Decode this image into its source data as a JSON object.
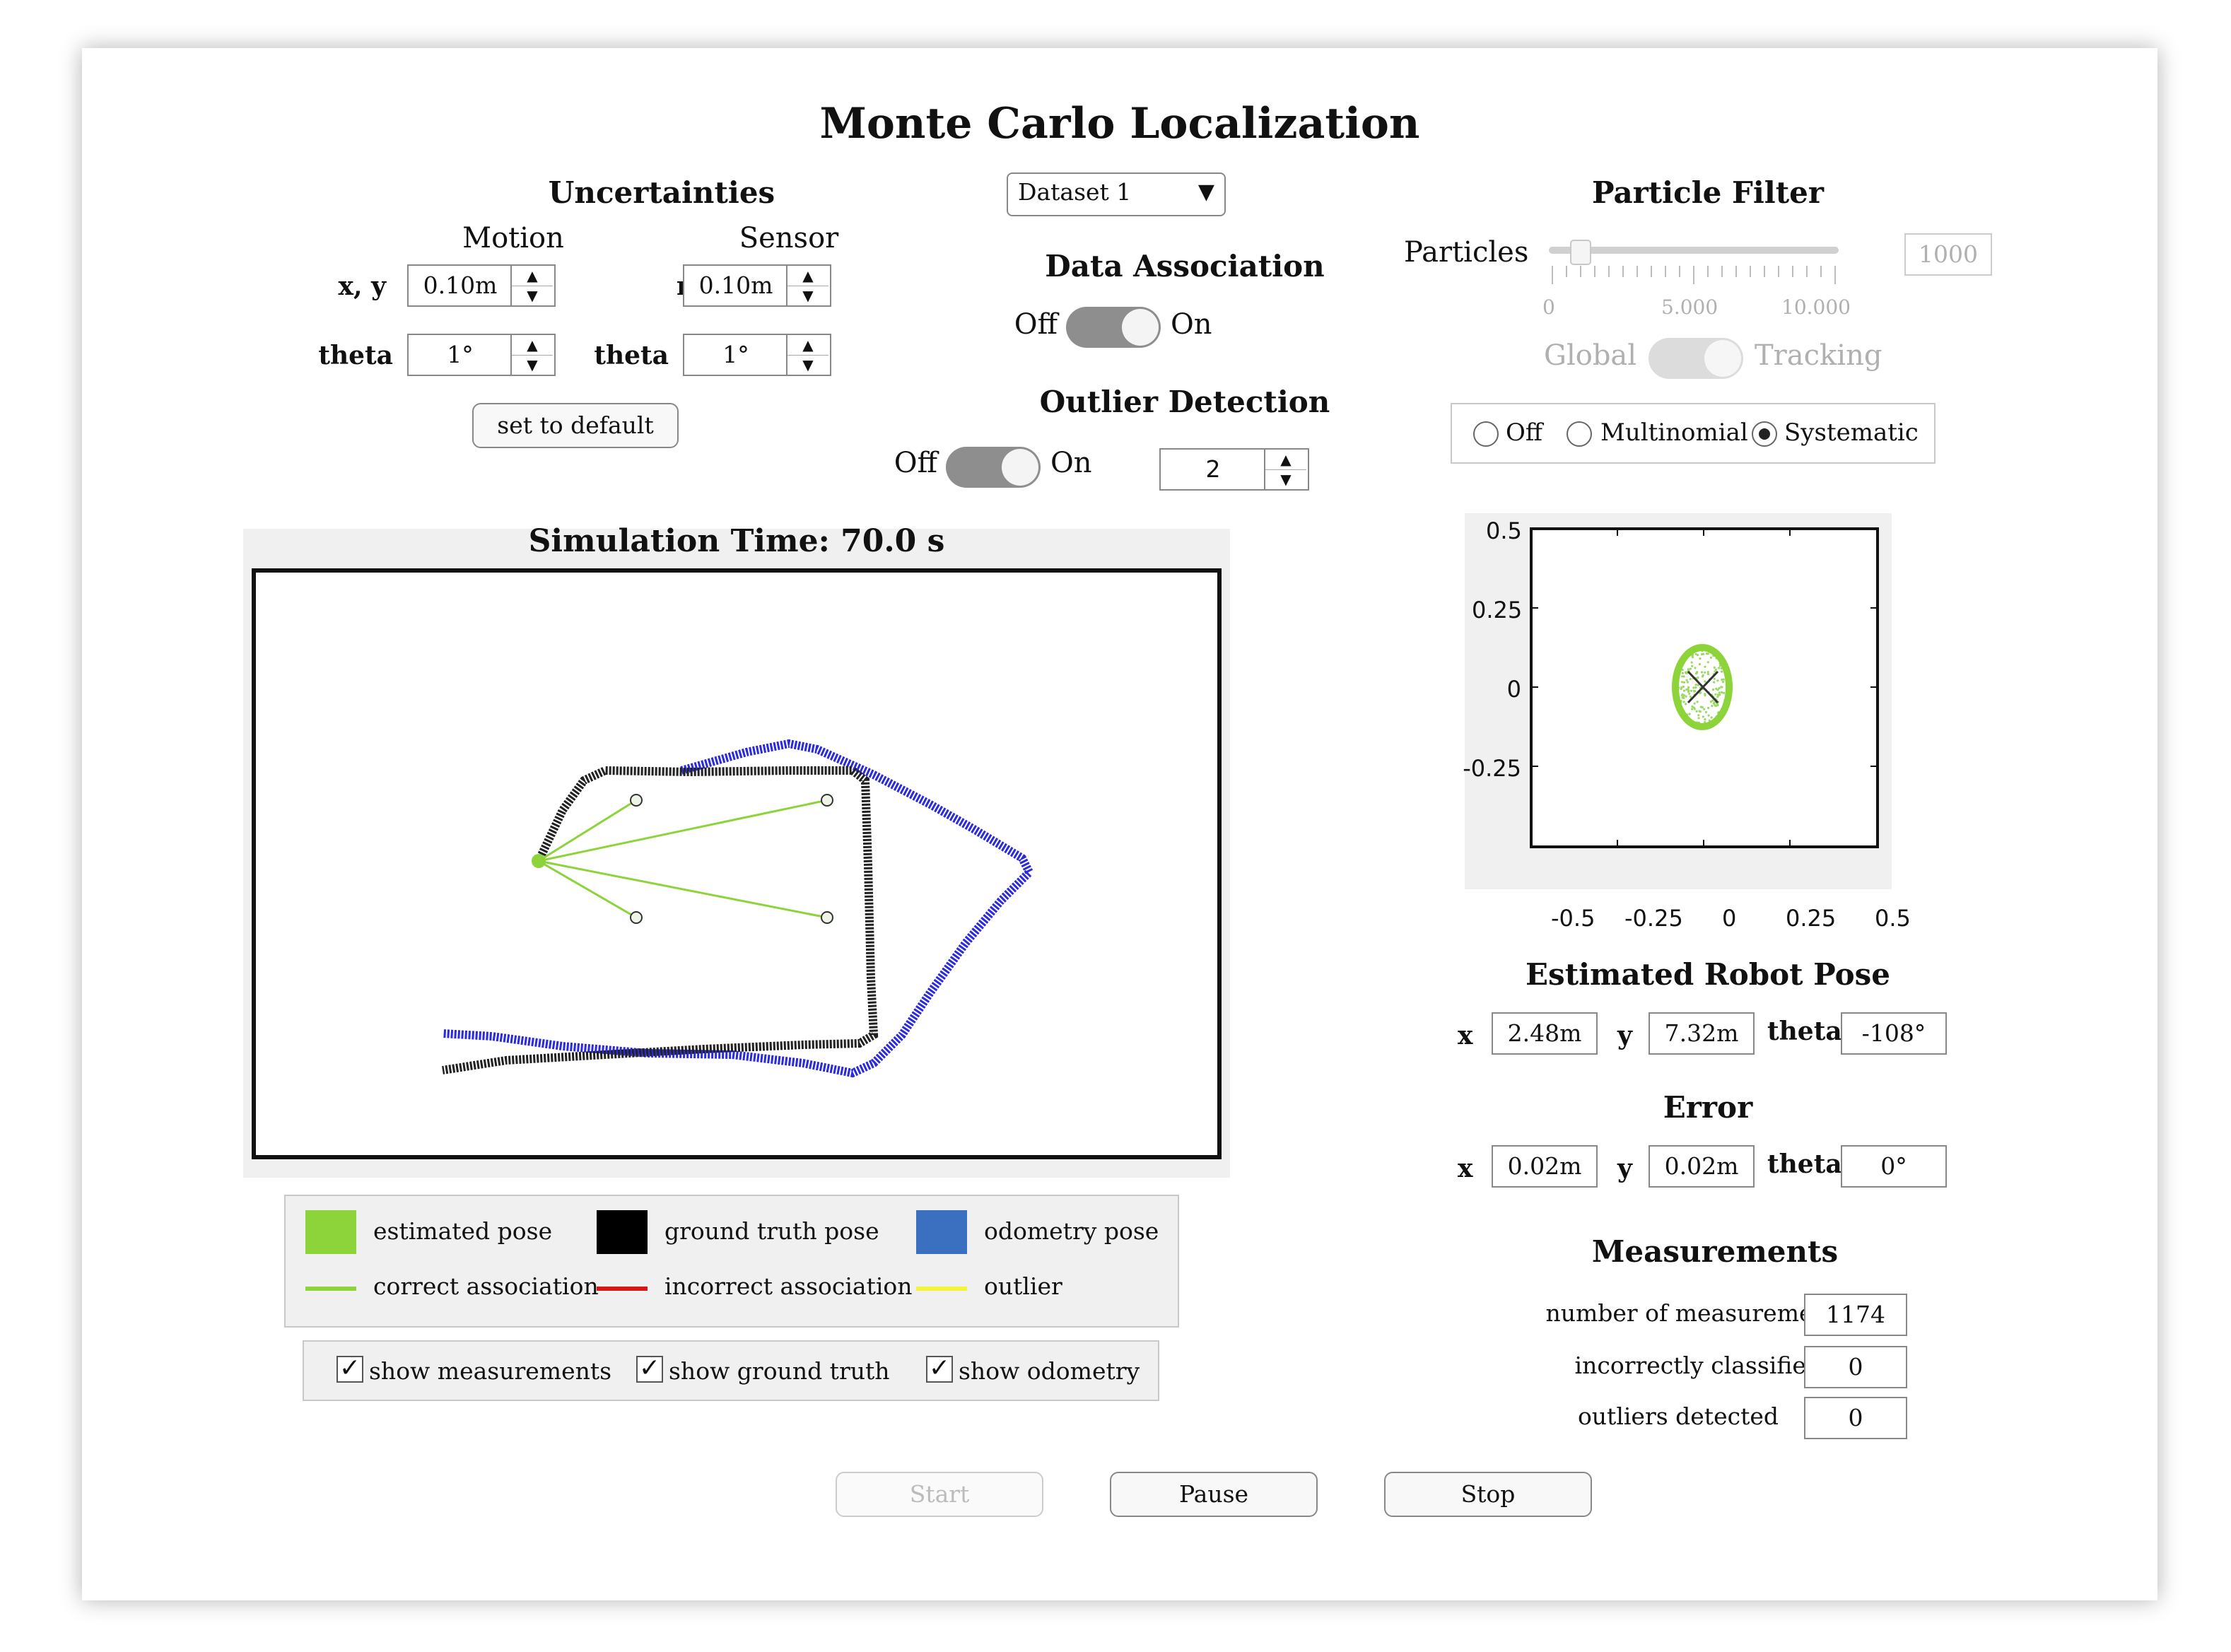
{
  "title": "Monte Carlo Localization",
  "uncertainties": {
    "title": "Uncertainties",
    "motion_label": "Motion",
    "sensor_label": "Sensor",
    "row_xy_label": "x, y",
    "row_r_label": "r",
    "row_theta_label": "theta",
    "motion_xy": "0.10m",
    "motion_theta": "1°",
    "sensor_r": "0.10m",
    "sensor_theta": "1°",
    "default_button": "set to default"
  },
  "dataset": {
    "selected": "Dataset 1"
  },
  "data_association": {
    "title": "Data Association",
    "off": "Off",
    "on": "On",
    "state": "on"
  },
  "outlier_detection": {
    "title": "Outlier Detection",
    "off": "Off",
    "on": "On",
    "state": "on",
    "threshold": "2"
  },
  "particle_filter": {
    "title": "Particle Filter",
    "particles_label": "Particles",
    "particles_value": "1000",
    "slider_min": 0,
    "slider_max": 10000,
    "slider_ticks": [
      "0",
      "5.000",
      "10.000"
    ],
    "global_label": "Global",
    "tracking_label": "Tracking",
    "resampling_options": [
      "Off",
      "Multinomial",
      "Systematic"
    ],
    "resampling_selected": "Systematic"
  },
  "simulation": {
    "time_label": "Simulation Time: 70.0 s"
  },
  "particle_plot": {
    "x_ticks": [
      "-0.5",
      "-0.25",
      "0",
      "0.25",
      "0.5"
    ],
    "y_ticks": [
      "0.5",
      "0.25",
      "0",
      "-0.25"
    ]
  },
  "legend": {
    "estimated_pose": "estimated pose",
    "ground_truth_pose": "ground truth pose",
    "odometry_pose": "odometry pose",
    "correct_association": "correct association",
    "incorrect_association": "incorrect association",
    "outlier": "outlier",
    "colors": {
      "estimated": "#8cd43a",
      "ground_truth": "#000000",
      "odometry": "#3b6fbf",
      "correct": "#8cd43a",
      "incorrect": "#d81818",
      "outlier": "#f4f43a"
    }
  },
  "show_options": {
    "show_measurements": "show measurements",
    "show_ground_truth": "show ground truth",
    "show_odometry": "show odometry",
    "checked": [
      true,
      true,
      true
    ]
  },
  "estimated_pose": {
    "title": "Estimated Robot Pose",
    "x_label": "x",
    "y_label": "y",
    "theta_label": "theta",
    "x": "2.48m",
    "y": "7.32m",
    "theta": "-108°"
  },
  "error": {
    "title": "Error",
    "x_label": "x",
    "y_label": "y",
    "theta_label": "theta",
    "x": "0.02m",
    "y": "0.02m",
    "theta": "0°"
  },
  "measurements": {
    "title": "Measurements",
    "number_label": "number of measurements",
    "number_value": "1174",
    "incorrect_label": "incorrectly classified",
    "incorrect_value": "0",
    "outliers_label": "outliers detected",
    "outliers_value": "0"
  },
  "controls": {
    "start": "Start",
    "pause": "Pause",
    "stop": "Stop",
    "start_enabled": false
  }
}
